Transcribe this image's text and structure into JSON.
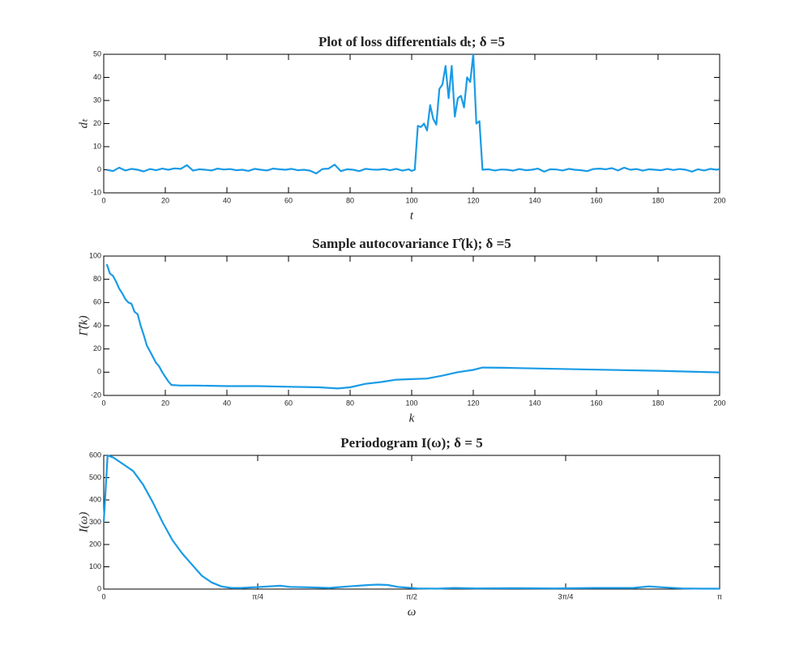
{
  "chart_data": [
    {
      "type": "line",
      "title": "Plot of loss differentials dₜ;  δ =5",
      "xlabel": "t",
      "ylabel": "dₜ",
      "color": "#1a9be6",
      "x": [
        1,
        3,
        5,
        7,
        9,
        11,
        13,
        15,
        17,
        19,
        21,
        23,
        25,
        27,
        29,
        31,
        33,
        35,
        37,
        39,
        41,
        43,
        45,
        47,
        49,
        51,
        53,
        55,
        57,
        59,
        61,
        63,
        65,
        67,
        69,
        71,
        73,
        75,
        77,
        79,
        81,
        83,
        85,
        87,
        89,
        91,
        93,
        95,
        97,
        99,
        100,
        101,
        102,
        103,
        104,
        105,
        106,
        107,
        108,
        109,
        110,
        111,
        112,
        113,
        114,
        115,
        116,
        117,
        118,
        119,
        120,
        121,
        122,
        123,
        125,
        127,
        129,
        131,
        133,
        135,
        137,
        139,
        141,
        143,
        145,
        147,
        149,
        151,
        153,
        155,
        157,
        159,
        161,
        163,
        165,
        167,
        169,
        171,
        173,
        175,
        177,
        179,
        181,
        183,
        185,
        187,
        189,
        191,
        193,
        195,
        197,
        199,
        200
      ],
      "values": [
        0,
        -0.6,
        0.9,
        -0.3,
        0.4,
        0,
        -0.7,
        0.3,
        -0.2,
        0.5,
        0,
        0.6,
        0.4,
        2,
        -0.4,
        0.2,
        0,
        -0.3,
        0.5,
        0.1,
        0.3,
        -0.2,
        0,
        -0.5,
        0.4,
        0,
        -0.3,
        0.5,
        0.2,
        0,
        0.4,
        -0.2,
        0,
        -0.4,
        -1.6,
        0.3,
        0.5,
        2.2,
        -0.6,
        0.2,
        0,
        -0.6,
        0.4,
        0.1,
        0,
        0.3,
        -0.2,
        0.4,
        -0.4,
        0.2,
        -0.5,
        0,
        19,
        18.5,
        20,
        17,
        28,
        22,
        19.5,
        35,
        37,
        45,
        31,
        45,
        23,
        31,
        32,
        27,
        40,
        38,
        50,
        20,
        21,
        0,
        0.2,
        -0.3,
        0.1,
        0,
        -0.4,
        0.3,
        -0.2,
        0,
        0.5,
        -0.8,
        0.2,
        0.1,
        -0.3,
        0.4,
        0,
        -0.2,
        -0.6,
        0.3,
        0.5,
        0.2,
        0.7,
        -0.3,
        0.9,
        0,
        0.3,
        -0.4,
        0.2,
        0,
        -0.2,
        0.4,
        -0.1,
        0.3,
        0,
        -0.8,
        0.2,
        -0.3,
        0.4,
        0,
        0.3
      ],
      "xlim": [
        0,
        200
      ],
      "xticks": [
        0,
        20,
        40,
        60,
        80,
        100,
        120,
        140,
        160,
        180,
        200
      ],
      "ylim": [
        -10,
        50
      ],
      "yticks": [
        -10,
        0,
        10,
        20,
        30,
        40,
        50
      ]
    },
    {
      "type": "line",
      "title": "Sample autocovariance Γ̂(k);  δ =5",
      "xlabel": "k",
      "ylabel": "Γ̂(k)",
      "color": "#1a9be6",
      "x": [
        1,
        2,
        3,
        4,
        5,
        6,
        7,
        8,
        9,
        10,
        11,
        12,
        13,
        14,
        15,
        16,
        17,
        18,
        19,
        20,
        21,
        22,
        25,
        30,
        40,
        50,
        60,
        70,
        76,
        80,
        85,
        90,
        95,
        100,
        105,
        110,
        115,
        120,
        123,
        130,
        140,
        160,
        180,
        200
      ],
      "values": [
        93,
        85,
        83,
        78,
        72,
        68,
        63,
        60,
        59,
        52,
        50,
        40,
        32,
        23,
        18,
        13,
        8,
        5,
        0,
        -4,
        -8,
        -11,
        -11.5,
        -11.5,
        -12,
        -12,
        -12.5,
        -13,
        -14,
        -13,
        -10,
        -8.5,
        -6.5,
        -6,
        -5.5,
        -3,
        0,
        2,
        4,
        3.8,
        3.2,
        2.2,
        1.2,
        -0.2
      ],
      "xlim": [
        0,
        200
      ],
      "xticks": [
        0,
        20,
        40,
        60,
        80,
        100,
        120,
        140,
        160,
        180,
        200
      ],
      "ylim": [
        -20,
        100
      ],
      "yticks": [
        -20,
        0,
        20,
        40,
        60,
        80,
        100
      ]
    },
    {
      "type": "line",
      "title": "Periodogram I(ω);  δ = 5",
      "xlabel": "ω",
      "ylabel": "I(ω)",
      "color": "#1a9be6",
      "x": [
        0,
        0.02,
        0.05,
        0.1,
        0.15,
        0.2,
        0.25,
        0.3,
        0.35,
        0.4,
        0.45,
        0.5,
        0.55,
        0.6,
        0.65,
        0.7,
        0.8,
        0.9,
        0.95,
        1.05,
        1.15,
        1.25,
        1.35,
        1.4,
        1.45,
        1.5,
        1.6,
        1.7,
        1.79,
        1.9,
        2.1,
        2.3,
        2.5,
        2.7,
        2.78,
        2.85,
        2.95,
        3.05,
        3.1416
      ],
      "values": [
        300,
        600,
        590,
        560,
        530,
        470,
        390,
        300,
        220,
        160,
        110,
        60,
        30,
        12,
        5,
        5,
        10,
        15,
        10,
        8,
        5,
        12,
        18,
        20,
        18,
        10,
        3,
        2,
        5,
        3,
        4,
        3,
        5,
        5,
        12,
        8,
        3,
        2,
        2
      ],
      "xlim": [
        0,
        3.141593
      ],
      "xticks": [
        0,
        {
          "value": 0.785398,
          "label": "π/4"
        },
        {
          "value": 1.570796,
          "label": "π/2"
        },
        {
          "value": 2.356194,
          "label": "3π/4"
        },
        {
          "value": 3.141593,
          "label": "π"
        }
      ],
      "ylim": [
        0,
        600
      ],
      "yticks": [
        0,
        100,
        200,
        300,
        400,
        500,
        600
      ]
    }
  ]
}
